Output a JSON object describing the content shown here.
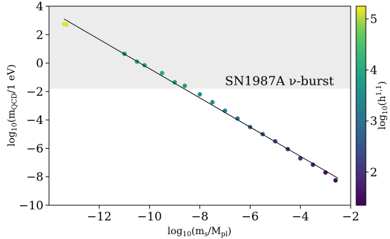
{
  "chart_data": {
    "type": "scatter",
    "title": "",
    "xlabel": {
      "main": "log",
      "base": "10",
      "open": "(m",
      "sub1": "s",
      "mid": "/M",
      "sub2": "pl",
      "close": ")"
    },
    "ylabel": {
      "main": "log",
      "base": "10",
      "open": "(m",
      "sub1": "QCD",
      "close": "/1 eV)"
    },
    "xlim": [
      -14,
      -2
    ],
    "ylim": [
      -10,
      4
    ],
    "xticks": [
      -12,
      -10,
      -8,
      -6,
      -4,
      -2
    ],
    "xtick_labels": [
      "−12",
      "−10",
      "−8",
      "−6",
      "−4",
      "−2"
    ],
    "yticks": [
      4,
      2,
      0,
      -2,
      -4,
      -6,
      -8,
      -10
    ],
    "ytick_labels": [
      "4",
      "2",
      "0",
      "−2",
      "−4",
      "−6",
      "−8",
      "−10"
    ],
    "grid": false,
    "shaded_region": {
      "y_from": -1.8,
      "y_to": 4,
      "color": "#ececec"
    },
    "annotation": {
      "text": "SN1987A ν-burst",
      "x": -7.0,
      "y": -1.55
    },
    "fit_line": {
      "x": [
        -13.4,
        -2.5
      ],
      "y": [
        3.1,
        -8.1
      ],
      "color": "#000000"
    },
    "series": [
      {
        "color_variable": "log10(h^{1,1})",
        "colormap": "viridis",
        "points": [
          {
            "x": -13.4,
            "y": 2.75,
            "c": 5.15
          },
          {
            "x": -13.3,
            "y": 2.7,
            "c": 5.15
          },
          {
            "x": -11.0,
            "y": 0.65,
            "c": 3.7
          },
          {
            "x": -10.5,
            "y": 0.1,
            "c": 4.05
          },
          {
            "x": -10.2,
            "y": -0.15,
            "c": 4.0
          },
          {
            "x": -9.5,
            "y": -0.7,
            "c": 3.95
          },
          {
            "x": -9.0,
            "y": -1.35,
            "c": 3.85
          },
          {
            "x": -8.6,
            "y": -1.6,
            "c": 3.75
          },
          {
            "x": -8.0,
            "y": -2.2,
            "c": 3.55
          },
          {
            "x": -7.5,
            "y": -2.75,
            "c": 3.4
          },
          {
            "x": -7.0,
            "y": -3.35,
            "c": 3.2
          },
          {
            "x": -6.5,
            "y": -3.9,
            "c": 3.0
          },
          {
            "x": -6.0,
            "y": -4.5,
            "c": 2.8
          },
          {
            "x": -5.5,
            "y": -5.0,
            "c": 2.55
          },
          {
            "x": -5.0,
            "y": -5.5,
            "c": 2.35
          },
          {
            "x": -4.5,
            "y": -6.05,
            "c": 2.15
          },
          {
            "x": -4.0,
            "y": -6.7,
            "c": 1.95
          },
          {
            "x": -3.5,
            "y": -7.15,
            "c": 1.75
          },
          {
            "x": -3.0,
            "y": -7.7,
            "c": 1.55
          },
          {
            "x": -2.6,
            "y": -8.25,
            "c": 1.4
          }
        ]
      }
    ],
    "colorbar": {
      "range": [
        1.35,
        5.25
      ],
      "ticks": [
        2,
        3,
        4,
        5
      ],
      "tick_labels": [
        "2",
        "3",
        "4",
        "5"
      ],
      "label": {
        "main": "log",
        "base": "10",
        "open": "(h",
        "sup": "1,1",
        "close": ")"
      }
    }
  }
}
